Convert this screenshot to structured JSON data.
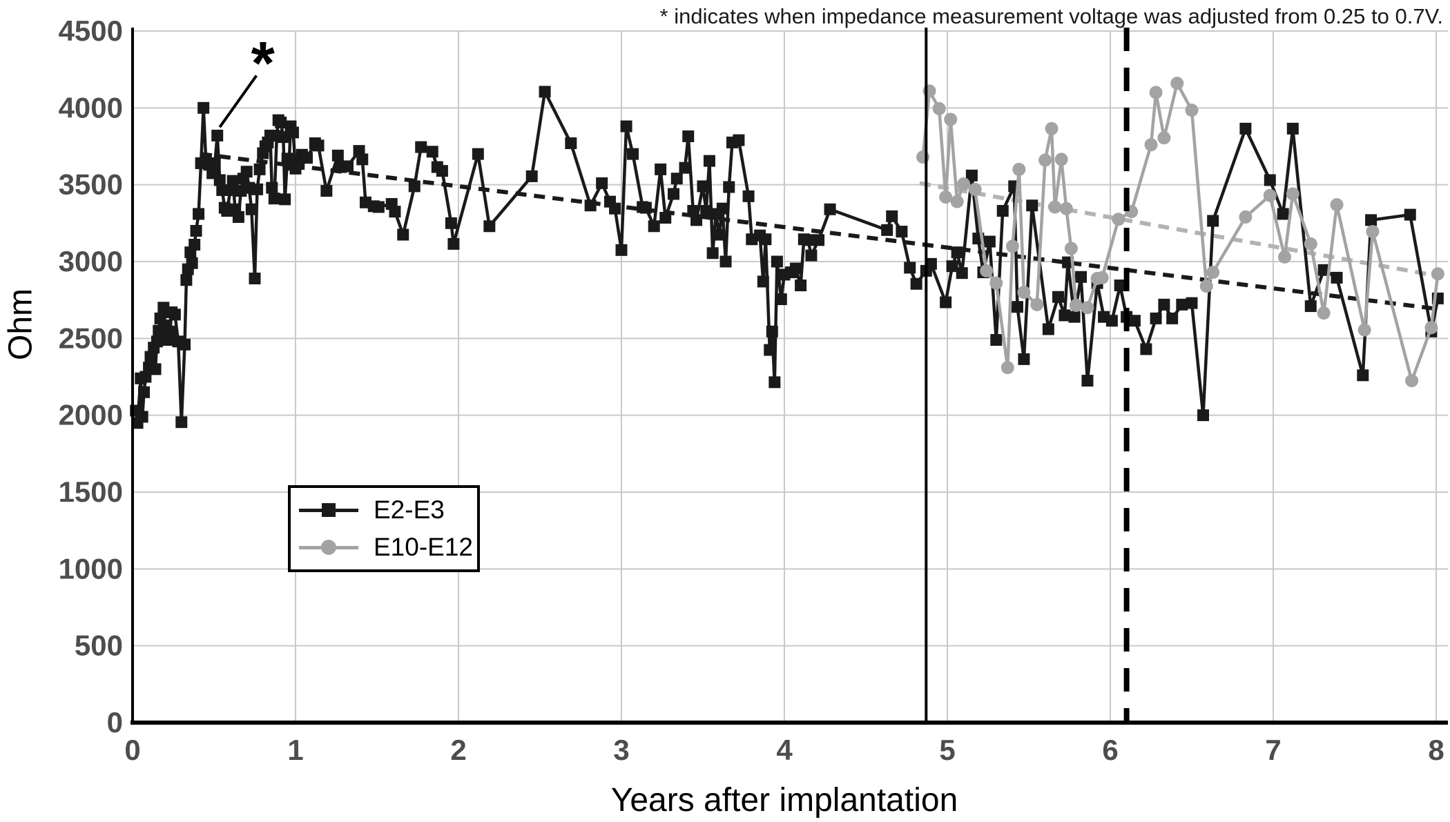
{
  "footnote": "* indicates when impedance measurement voltage was adjusted from 0.25 to 0.7V.",
  "colors": {
    "background": "#ffffff",
    "black_series": "#1a1a1a",
    "gray_series": "#a3a3a3",
    "gridline": "#c9c9c9",
    "tick_label": "#4d4d4d",
    "axis_line": "#000000",
    "trend_black": "#1a1a1a",
    "trend_gray": "#b3b3b3",
    "vline": "#000000"
  },
  "legend": {
    "items": [
      {
        "label": "E2-E3",
        "marker": "square",
        "color": "#1a1a1a"
      },
      {
        "label": "E10-E12",
        "marker": "circle",
        "color": "#a3a3a3"
      }
    ]
  },
  "chart_data": {
    "type": "line",
    "title": "",
    "xlabel": "Years after implantation",
    "ylabel": "Ohm",
    "xlim": [
      0,
      8.05
    ],
    "ylim": [
      0,
      4500
    ],
    "x_ticks": [
      0,
      1,
      2,
      3,
      4,
      5,
      6,
      7,
      8
    ],
    "y_ticks": [
      0,
      500,
      1000,
      1500,
      2000,
      2500,
      3000,
      3500,
      4000,
      4500
    ],
    "grid": true,
    "legend_position": "inside-left-middle",
    "series": [
      {
        "name": "E2-E3",
        "marker": "square",
        "color": "#1a1a1a",
        "points": [
          [
            0.02,
            2030
          ],
          [
            0.03,
            1950
          ],
          [
            0.05,
            2240
          ],
          [
            0.06,
            1990
          ],
          [
            0.07,
            2150
          ],
          [
            0.08,
            2250
          ],
          [
            0.1,
            2310
          ],
          [
            0.11,
            2380
          ],
          [
            0.13,
            2440
          ],
          [
            0.14,
            2300
          ],
          [
            0.15,
            2480
          ],
          [
            0.16,
            2550
          ],
          [
            0.17,
            2630
          ],
          [
            0.19,
            2700
          ],
          [
            0.2,
            2585
          ],
          [
            0.21,
            2490
          ],
          [
            0.23,
            2545
          ],
          [
            0.24,
            2670
          ],
          [
            0.26,
            2655
          ],
          [
            0.28,
            2480
          ],
          [
            0.3,
            1955
          ],
          [
            0.32,
            2460
          ],
          [
            0.33,
            2880
          ],
          [
            0.34,
            2950
          ],
          [
            0.355,
            3060
          ],
          [
            0.365,
            2990
          ],
          [
            0.38,
            3110
          ],
          [
            0.39,
            3200
          ],
          [
            0.405,
            3310
          ],
          [
            0.42,
            3640
          ],
          [
            0.435,
            4000
          ],
          [
            0.45,
            3660
          ],
          [
            0.47,
            3630
          ],
          [
            0.49,
            3575
          ],
          [
            0.505,
            3640
          ],
          [
            0.52,
            3820
          ],
          [
            0.535,
            3530
          ],
          [
            0.55,
            3465
          ],
          [
            0.565,
            3350
          ],
          [
            0.58,
            3330
          ],
          [
            0.6,
            3465
          ],
          [
            0.615,
            3525
          ],
          [
            0.63,
            3340
          ],
          [
            0.65,
            3290
          ],
          [
            0.665,
            3460
          ],
          [
            0.68,
            3540
          ],
          [
            0.7,
            3585
          ],
          [
            0.715,
            3480
          ],
          [
            0.73,
            3340
          ],
          [
            0.75,
            2890
          ],
          [
            0.765,
            3470
          ],
          [
            0.78,
            3600
          ],
          [
            0.8,
            3705
          ],
          [
            0.815,
            3750
          ],
          [
            0.83,
            3775
          ],
          [
            0.845,
            3820
          ],
          [
            0.855,
            3480
          ],
          [
            0.87,
            3410
          ],
          [
            0.885,
            3818
          ],
          [
            0.895,
            3920
          ],
          [
            0.91,
            3905
          ],
          [
            0.925,
            3810
          ],
          [
            0.935,
            3405
          ],
          [
            0.95,
            3670
          ],
          [
            0.96,
            3630
          ],
          [
            0.97,
            3880
          ],
          [
            0.985,
            3840
          ],
          [
            1.0,
            3605
          ],
          [
            1.02,
            3635
          ],
          [
            1.04,
            3695
          ],
          [
            1.07,
            3675
          ],
          [
            1.12,
            3770
          ],
          [
            1.14,
            3755
          ],
          [
            1.19,
            3460
          ],
          [
            1.26,
            3690
          ],
          [
            1.28,
            3615
          ],
          [
            1.32,
            3620
          ],
          [
            1.39,
            3720
          ],
          [
            1.41,
            3665
          ],
          [
            1.43,
            3385
          ],
          [
            1.48,
            3360
          ],
          [
            1.51,
            3355
          ],
          [
            1.59,
            3375
          ],
          [
            1.61,
            3325
          ],
          [
            1.66,
            3175
          ],
          [
            1.73,
            3490
          ],
          [
            1.77,
            3745
          ],
          [
            1.84,
            3715
          ],
          [
            1.87,
            3615
          ],
          [
            1.9,
            3590
          ],
          [
            1.955,
            3250
          ],
          [
            1.97,
            3115
          ],
          [
            2.12,
            3700
          ],
          [
            2.19,
            3230
          ],
          [
            2.45,
            3555
          ],
          [
            2.53,
            4105
          ],
          [
            2.69,
            3770
          ],
          [
            2.81,
            3365
          ],
          [
            2.88,
            3510
          ],
          [
            2.93,
            3390
          ],
          [
            2.96,
            3345
          ],
          [
            3.0,
            3075
          ],
          [
            3.03,
            3880
          ],
          [
            3.07,
            3700
          ],
          [
            3.13,
            3355
          ],
          [
            3.15,
            3350
          ],
          [
            3.2,
            3230
          ],
          [
            3.24,
            3600
          ],
          [
            3.27,
            3285
          ],
          [
            3.32,
            3440
          ],
          [
            3.34,
            3540
          ],
          [
            3.39,
            3610
          ],
          [
            3.41,
            3815
          ],
          [
            3.44,
            3330
          ],
          [
            3.46,
            3270
          ],
          [
            3.5,
            3490
          ],
          [
            3.52,
            3330
          ],
          [
            3.54,
            3655
          ],
          [
            3.56,
            3055
          ],
          [
            3.58,
            3310
          ],
          [
            3.6,
            3175
          ],
          [
            3.62,
            3345
          ],
          [
            3.64,
            3000
          ],
          [
            3.66,
            3485
          ],
          [
            3.68,
            3775
          ],
          [
            3.72,
            3790
          ],
          [
            3.78,
            3425
          ],
          [
            3.8,
            3145
          ],
          [
            3.85,
            3170
          ],
          [
            3.87,
            2870
          ],
          [
            3.885,
            3145
          ],
          [
            3.91,
            2425
          ],
          [
            3.925,
            2545
          ],
          [
            3.94,
            2215
          ],
          [
            3.955,
            3000
          ],
          [
            3.98,
            2755
          ],
          [
            4.0,
            2915
          ],
          [
            4.04,
            2930
          ],
          [
            4.07,
            2955
          ],
          [
            4.1,
            2845
          ],
          [
            4.12,
            3145
          ],
          [
            4.145,
            3140
          ],
          [
            4.165,
            3040
          ],
          [
            4.21,
            3140
          ],
          [
            4.28,
            3340
          ],
          [
            4.63,
            3205
          ],
          [
            4.66,
            3295
          ],
          [
            4.72,
            3195
          ],
          [
            4.77,
            2960
          ],
          [
            4.81,
            2855
          ],
          [
            4.87,
            2940
          ],
          [
            4.9,
            2985
          ],
          [
            4.99,
            2735
          ],
          [
            5.03,
            2970
          ],
          [
            5.06,
            3060
          ],
          [
            5.09,
            2925
          ],
          [
            5.15,
            3560
          ],
          [
            5.19,
            3150
          ],
          [
            5.22,
            2930
          ],
          [
            5.26,
            3130
          ],
          [
            5.3,
            2490
          ],
          [
            5.34,
            3330
          ],
          [
            5.41,
            3490
          ],
          [
            5.43,
            2705
          ],
          [
            5.47,
            2365
          ],
          [
            5.52,
            3365
          ],
          [
            5.62,
            2560
          ],
          [
            5.68,
            2770
          ],
          [
            5.72,
            2650
          ],
          [
            5.74,
            2995
          ],
          [
            5.78,
            2640
          ],
          [
            5.82,
            2900
          ],
          [
            5.86,
            2225
          ],
          [
            5.92,
            2860
          ],
          [
            5.96,
            2640
          ],
          [
            6.01,
            2615
          ],
          [
            6.06,
            2845
          ],
          [
            6.1,
            2640
          ],
          [
            6.15,
            2615
          ],
          [
            6.22,
            2430
          ],
          [
            6.28,
            2630
          ],
          [
            6.33,
            2720
          ],
          [
            6.38,
            2630
          ],
          [
            6.44,
            2720
          ],
          [
            6.5,
            2730
          ],
          [
            6.57,
            2000
          ],
          [
            6.63,
            3265
          ],
          [
            6.83,
            3865
          ],
          [
            6.98,
            3530
          ],
          [
            7.06,
            3310
          ],
          [
            7.12,
            3865
          ],
          [
            7.23,
            2710
          ],
          [
            7.31,
            2945
          ],
          [
            7.39,
            2895
          ],
          [
            7.55,
            2260
          ],
          [
            7.6,
            3270
          ],
          [
            7.84,
            3305
          ],
          [
            7.97,
            2545
          ],
          [
            8.01,
            2760
          ]
        ]
      },
      {
        "name": "E10-E12",
        "marker": "circle",
        "color": "#a3a3a3",
        "points": [
          [
            4.85,
            3680
          ],
          [
            4.89,
            4110
          ],
          [
            4.95,
            3995
          ],
          [
            4.99,
            3420
          ],
          [
            5.02,
            3925
          ],
          [
            5.06,
            3390
          ],
          [
            5.1,
            3505
          ],
          [
            5.17,
            3470
          ],
          [
            5.24,
            2940
          ],
          [
            5.3,
            2860
          ],
          [
            5.37,
            2310
          ],
          [
            5.4,
            3100
          ],
          [
            5.44,
            3600
          ],
          [
            5.47,
            2800
          ],
          [
            5.55,
            2720
          ],
          [
            5.6,
            3660
          ],
          [
            5.64,
            3865
          ],
          [
            5.66,
            3355
          ],
          [
            5.7,
            3665
          ],
          [
            5.73,
            3345
          ],
          [
            5.76,
            3085
          ],
          [
            5.79,
            2715
          ],
          [
            5.86,
            2700
          ],
          [
            5.92,
            2890
          ],
          [
            5.95,
            2895
          ],
          [
            6.05,
            3275
          ],
          [
            6.13,
            3325
          ],
          [
            6.25,
            3760
          ],
          [
            6.28,
            4100
          ],
          [
            6.33,
            3805
          ],
          [
            6.41,
            4160
          ],
          [
            6.5,
            3985
          ],
          [
            6.59,
            2840
          ],
          [
            6.63,
            2930
          ],
          [
            6.83,
            3290
          ],
          [
            6.98,
            3430
          ],
          [
            7.07,
            3030
          ],
          [
            7.12,
            3440
          ],
          [
            7.23,
            3115
          ],
          [
            7.31,
            2665
          ],
          [
            7.39,
            3370
          ],
          [
            7.56,
            2555
          ],
          [
            7.61,
            3195
          ],
          [
            7.85,
            2225
          ],
          [
            7.97,
            2570
          ],
          [
            8.01,
            2920
          ]
        ]
      }
    ],
    "trendlines": [
      {
        "series": "E2-E3",
        "style": "dashed",
        "color": "#1a1a1a",
        "from": [
          0.42,
          3700
        ],
        "to": [
          8.02,
          2690
        ]
      },
      {
        "series": "E10-E12",
        "style": "dashed",
        "color": "#b3b3b3",
        "from": [
          4.83,
          3510
        ],
        "to": [
          8.02,
          2905
        ]
      }
    ],
    "vlines": [
      {
        "x": 4.87,
        "style": "solid"
      },
      {
        "x": 6.1,
        "style": "dashed"
      }
    ],
    "star_annotation": {
      "symbol": "*",
      "x": 0.8,
      "y": 4290,
      "pointer_from": [
        0.76,
        4210
      ],
      "pointer_to": [
        0.535,
        3875
      ]
    }
  }
}
